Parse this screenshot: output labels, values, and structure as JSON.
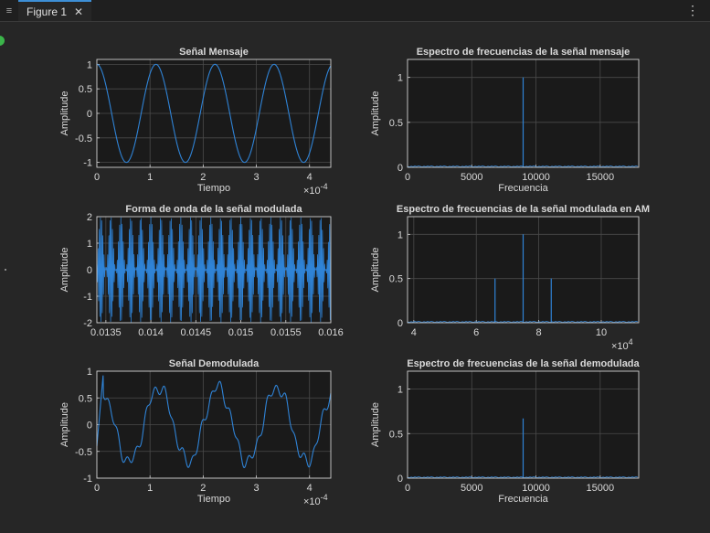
{
  "window": {
    "tab_label": "Figure 1",
    "close_glyph": "✕",
    "menu_glyph": "≡",
    "overflow_glyph": "⋮"
  },
  "colors": {
    "background": "#262626",
    "axes_bg": "#1a1a1a",
    "grid": "#4a4a4a",
    "axis": "#cfcfcf",
    "line": "#2f83d6",
    "text": "#d9d9d9"
  },
  "chart_data": [
    {
      "type": "line",
      "title": "Señal Mensaje",
      "xlabel": "Tiempo",
      "ylabel": "Amplitude",
      "xlim": [
        0,
        0.00044
      ],
      "ylim": [
        -1.1,
        1.1
      ],
      "xticks": [
        0,
        1,
        2,
        3,
        4
      ],
      "xtick_labels": [
        "0",
        "1",
        "2",
        "3",
        "4"
      ],
      "x_exponent_base": "×10",
      "x_exponent_power": "-4",
      "yticks": [
        -1,
        -0.5,
        0,
        0.5,
        1
      ],
      "ytick_labels": [
        "-1",
        "-0.5",
        "0",
        "0.5",
        "1"
      ],
      "grid": true,
      "series": [
        {
          "signal": "cos",
          "amplitude": 1,
          "frequency_hz": 9000,
          "x_range": [
            0,
            0.00044
          ]
        }
      ]
    },
    {
      "type": "line",
      "title": "Espectro de frecuencias de la señal mensaje",
      "xlabel": "Frecuencia",
      "ylabel": "Amplitude",
      "xlim": [
        0,
        18000
      ],
      "ylim": [
        0,
        1.2
      ],
      "xticks": [
        0,
        5000,
        10000,
        15000
      ],
      "xtick_labels": [
        "0",
        "5000",
        "10000",
        "15000"
      ],
      "yticks": [
        0,
        0.5,
        1
      ],
      "ytick_labels": [
        "0",
        "0.5",
        "1"
      ],
      "grid": true,
      "series": [
        {
          "peaks": [
            {
              "x": 9000,
              "y": 1
            }
          ]
        }
      ]
    },
    {
      "type": "line",
      "title": "Forma de onda de la señal modulada",
      "xlabel": "",
      "ylabel": "Amplitude",
      "xlim": [
        0.0134,
        0.016
      ],
      "ylim": [
        -2,
        2
      ],
      "xticks": [
        0.0135,
        0.014,
        0.0145,
        0.015,
        0.0155,
        0.016
      ],
      "xtick_labels": [
        "0.0135",
        "0.014",
        "0.0145",
        "0.015",
        "0.0155",
        "0.016"
      ],
      "yticks": [
        -2,
        -1,
        0,
        1,
        2
      ],
      "ytick_labels": [
        "-2",
        "-1",
        "0",
        "1",
        "2"
      ],
      "grid": true,
      "series": [
        {
          "signal": "am",
          "carrier_hz": 75000,
          "message_hz": 9000,
          "x_range": [
            0.0134,
            0.016
          ]
        }
      ]
    },
    {
      "type": "line",
      "title": "Espectro de frecuencias de la señal modulada en AM",
      "xlabel": "",
      "ylabel": "Amplitude",
      "xlim": [
        38000,
        112000
      ],
      "ylim": [
        0,
        1.2
      ],
      "xticks": [
        40000,
        60000,
        80000,
        100000
      ],
      "xtick_labels": [
        "4",
        "6",
        "8",
        "10"
      ],
      "x_exponent_base": "×10",
      "x_exponent_power": "4",
      "yticks": [
        0,
        0.5,
        1
      ],
      "ytick_labels": [
        "0",
        "0.5",
        "1"
      ],
      "grid": true,
      "series": [
        {
          "peaks": [
            {
              "x": 66000,
              "y": 0.5
            },
            {
              "x": 75000,
              "y": 1
            },
            {
              "x": 84000,
              "y": 0.5
            }
          ]
        }
      ]
    },
    {
      "type": "line",
      "title": "Señal Demodulada",
      "xlabel": "Tiempo",
      "ylabel": "Amplitude",
      "xlim": [
        0,
        0.00044
      ],
      "ylim": [
        -1,
        1
      ],
      "xticks": [
        0,
        1,
        2,
        3,
        4
      ],
      "xtick_labels": [
        "0",
        "1",
        "2",
        "3",
        "4"
      ],
      "x_exponent_base": "×10",
      "x_exponent_power": "-4",
      "yticks": [
        -1,
        -0.5,
        0,
        0.5,
        1
      ],
      "ytick_labels": [
        "-1",
        "-0.5",
        "0",
        "0.5",
        "1"
      ],
      "grid": true,
      "series": [
        {
          "signal": "demod",
          "amplitude": 0.7,
          "frequency_hz": 9000,
          "x_range": [
            0,
            0.00044
          ]
        }
      ]
    },
    {
      "type": "line",
      "title": "Espectro de frecuencias de la señal demodulada",
      "xlabel": "Frecuencia",
      "ylabel": "Amplitude",
      "xlim": [
        0,
        18000
      ],
      "ylim": [
        0,
        1.2
      ],
      "xticks": [
        0,
        5000,
        10000,
        15000
      ],
      "xtick_labels": [
        "0",
        "5000",
        "10000",
        "15000"
      ],
      "yticks": [
        0,
        0.5,
        1
      ],
      "ytick_labels": [
        "0",
        "0.5",
        "1"
      ],
      "grid": true,
      "series": [
        {
          "peaks": [
            {
              "x": 9000,
              "y": 0.67
            }
          ]
        }
      ]
    }
  ]
}
